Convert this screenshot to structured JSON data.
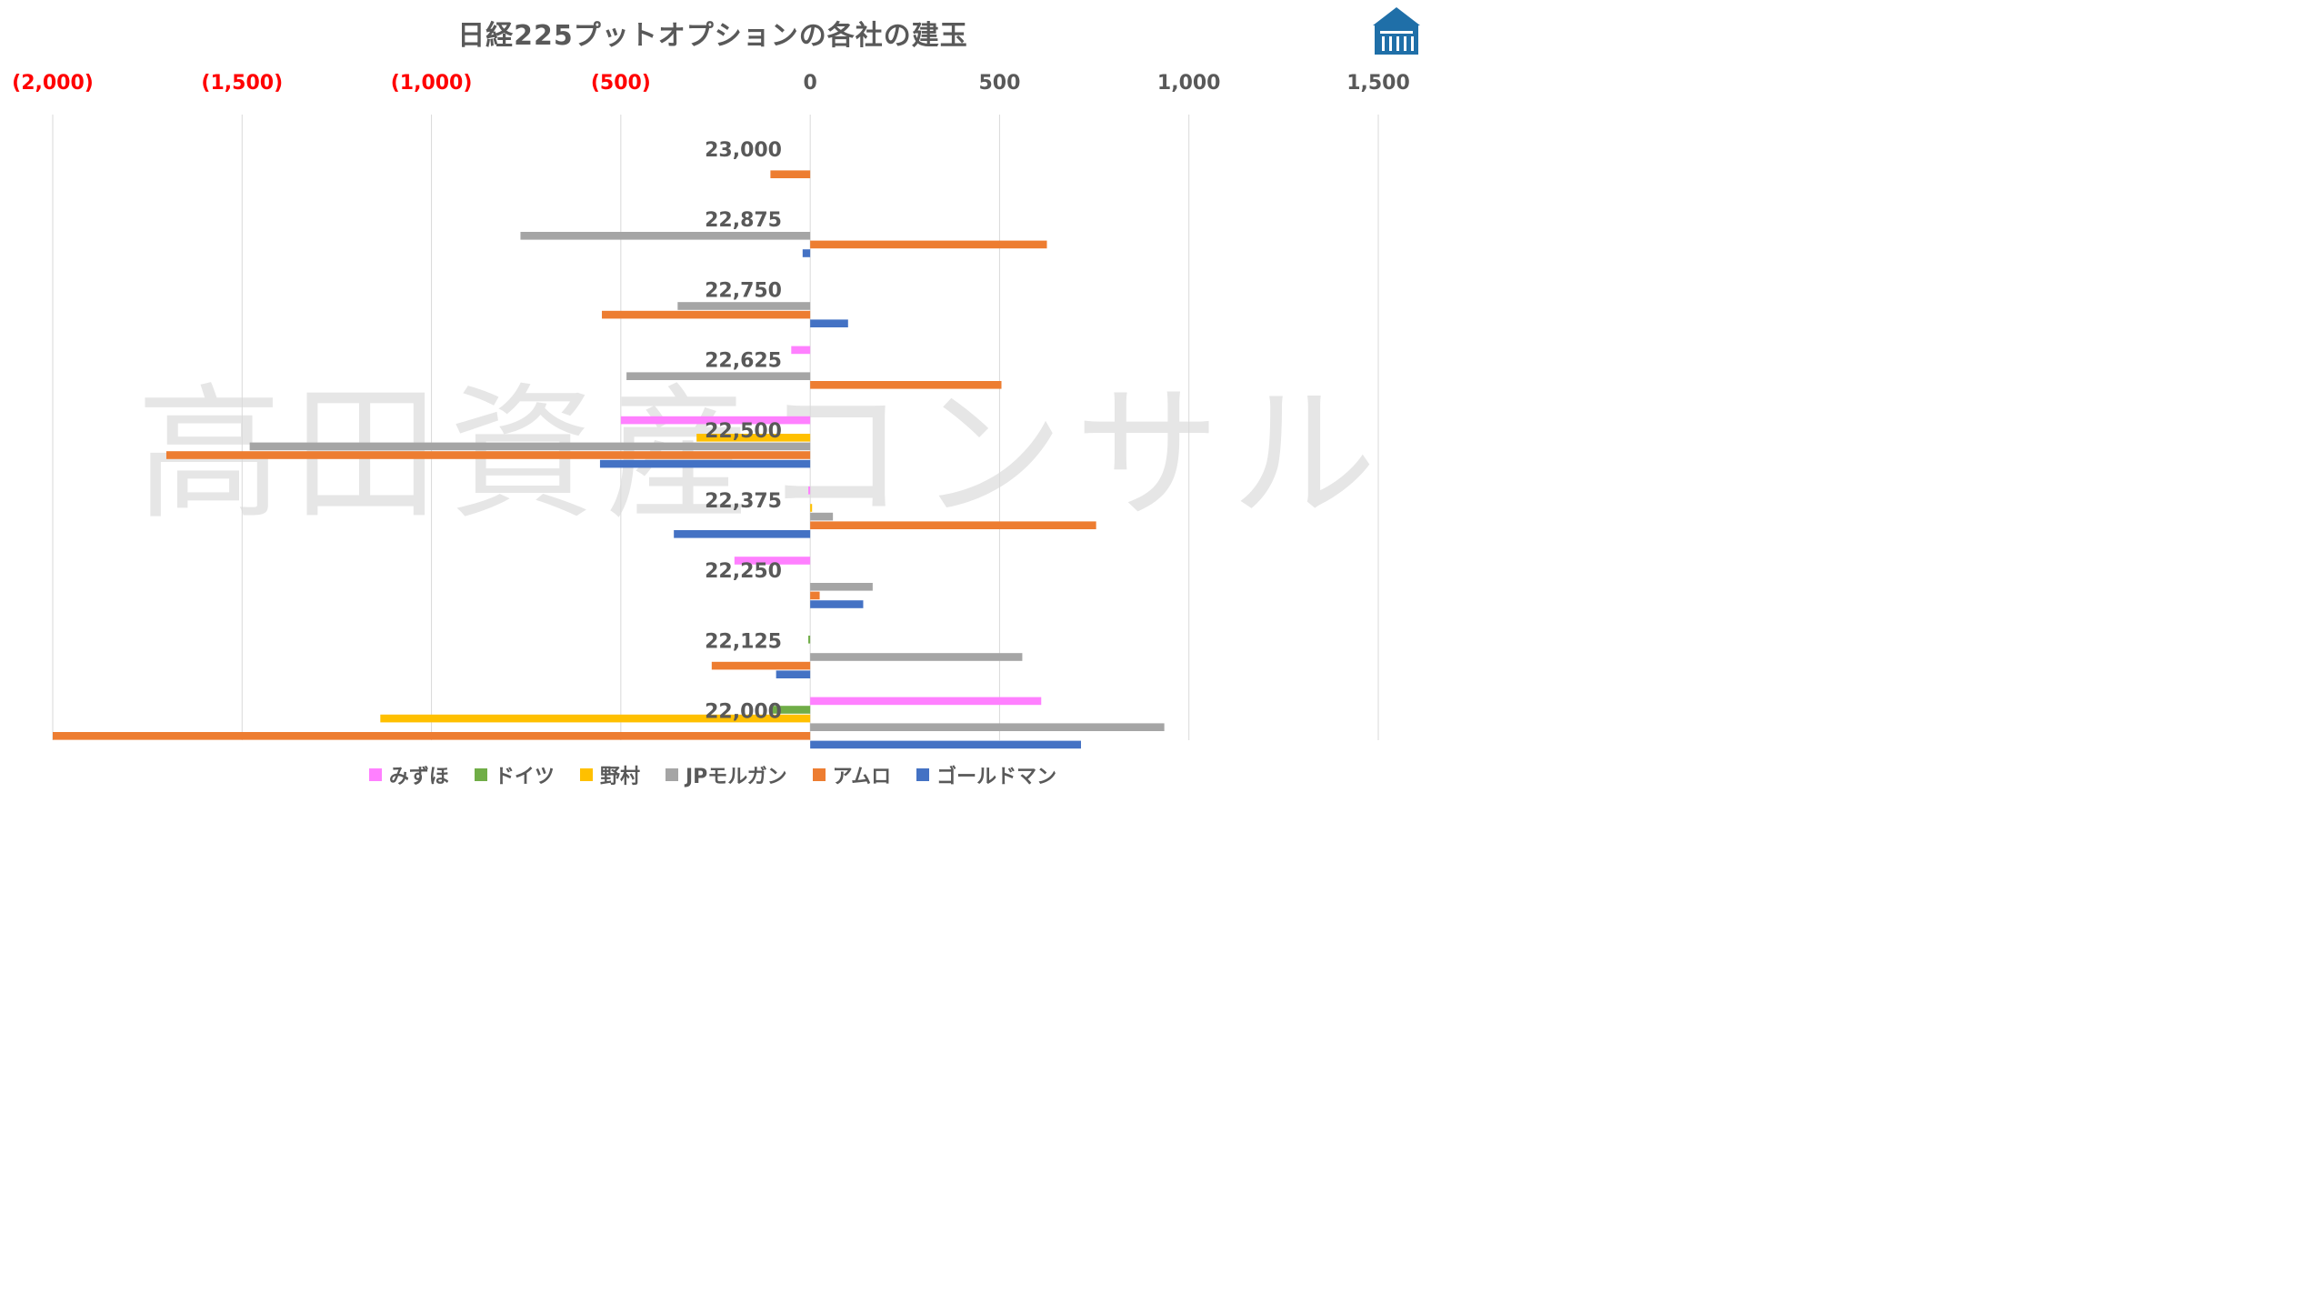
{
  "title": "日経225プットオプションの各社の建玉",
  "watermark": "高田資産コンサル",
  "logo": "building-icon",
  "colors": {
    "negative_tick": "#ff0000",
    "positive_tick": "#595959",
    "gridline": "#d9d9d9",
    "category_label": "#595959"
  },
  "chart_data": {
    "type": "bar",
    "orientation": "horizontal",
    "title": "日経225プットオプションの各社の建玉",
    "xlim": [
      -2000,
      1500
    ],
    "x_ticks": [
      -2000,
      -1500,
      -1000,
      -500,
      0,
      500,
      1000,
      1500
    ],
    "x_tick_labels": [
      "(2,000)",
      "(1,500)",
      "(1,000)",
      "(500)",
      "0",
      "500",
      "1,000",
      "1,500"
    ],
    "x_axis_position": "top",
    "grid": true,
    "legend_position": "bottom",
    "categories": [
      "23,000",
      "22,875",
      "22,750",
      "22,625",
      "22,500",
      "22,375",
      "22,250",
      "22,125",
      "22,000"
    ],
    "series": [
      {
        "name": "みずほ",
        "color": "#ff80ff",
        "values": [
          0,
          0,
          0,
          -50,
          -500,
          -5,
          -200,
          0,
          610
        ]
      },
      {
        "name": "ドイツ",
        "color": "#70ad47",
        "values": [
          0,
          0,
          0,
          0,
          0,
          0,
          0,
          -5,
          -100
        ]
      },
      {
        "name": "野村",
        "color": "#ffc000",
        "values": [
          0,
          0,
          0,
          0,
          -300,
          5,
          0,
          0,
          -1135
        ]
      },
      {
        "name": "JPモルガン",
        "color": "#a5a5a5",
        "values": [
          0,
          -765,
          -350,
          -485,
          -1480,
          60,
          165,
          560,
          935
        ]
      },
      {
        "name": "アムロ",
        "color": "#ed7d31",
        "values": [
          -105,
          625,
          -550,
          505,
          -1700,
          755,
          25,
          -260,
          -2000
        ]
      },
      {
        "name": "ゴールドマン",
        "color": "#4472c4",
        "values": [
          0,
          -20,
          100,
          0,
          -555,
          -360,
          140,
          -90,
          715
        ]
      }
    ]
  }
}
